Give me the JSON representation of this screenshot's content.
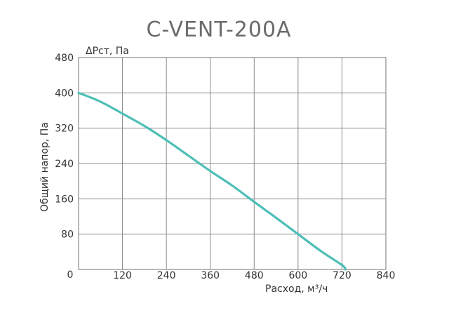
{
  "chart_data": {
    "type": "line",
    "title": "C-VENT-200A",
    "ylabel_top": "ΔPст, Па",
    "ylabel": "Общий напор, Па",
    "xlabel": "Расход, м³/ч",
    "xlim": [
      0,
      840
    ],
    "ylim": [
      0,
      480
    ],
    "x_ticks": [
      0,
      120,
      240,
      360,
      480,
      600,
      720,
      840
    ],
    "y_ticks": [
      0,
      80,
      160,
      240,
      320,
      400,
      480
    ],
    "grid": true,
    "series": [
      {
        "color": "#4dbfb7",
        "x": [
          0,
          60,
          120,
          180,
          240,
          300,
          360,
          420,
          480,
          540,
          600,
          660,
          720,
          730
        ],
        "y": [
          400,
          380,
          353,
          325,
          293,
          258,
          223,
          190,
          153,
          117,
          80,
          43,
          10,
          0
        ]
      }
    ]
  }
}
